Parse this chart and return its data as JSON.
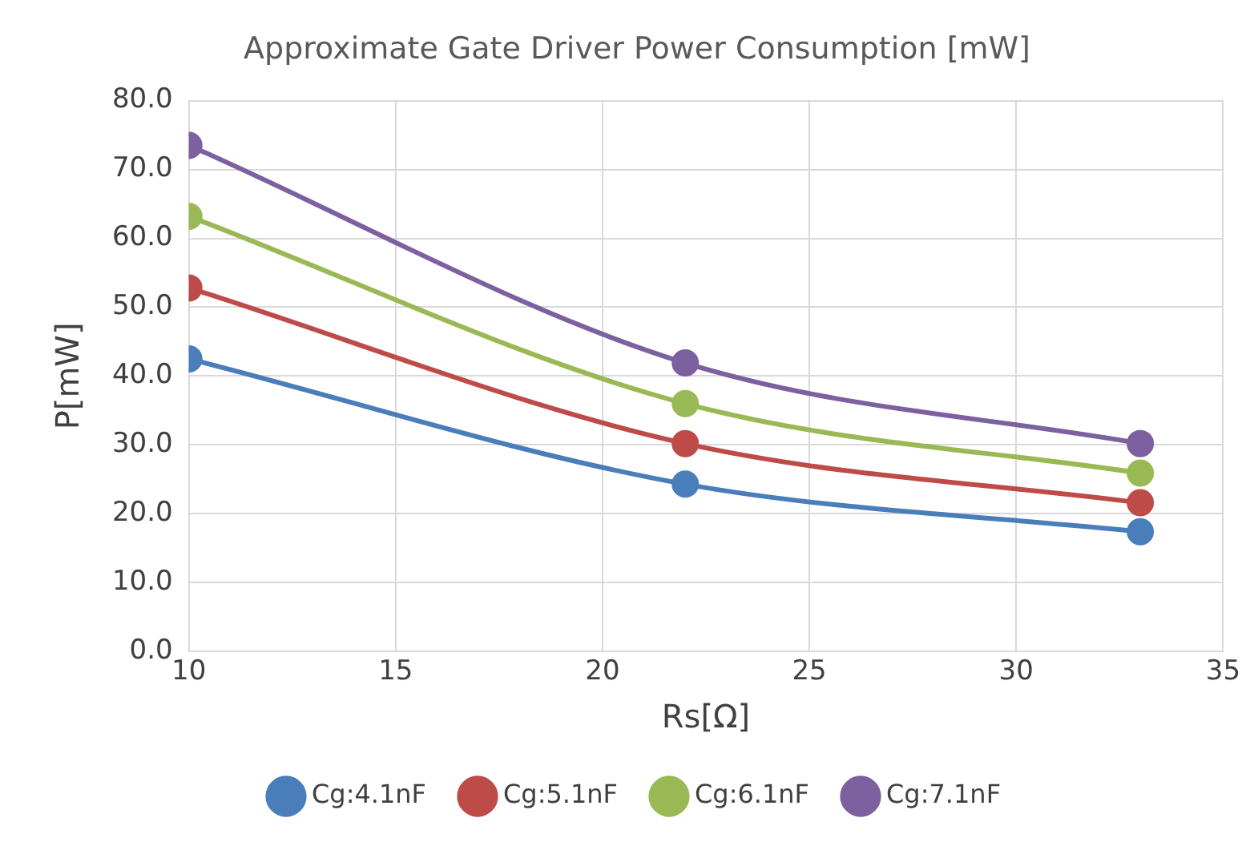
{
  "chart_data": {
    "type": "line",
    "title": "Approximate Gate Driver Power Consumption [mW]",
    "xlabel": "Rs[Ω]",
    "ylabel": "P[mW]",
    "x": [
      10,
      22,
      33
    ],
    "series": [
      {
        "name": "Cg:4.1nF",
        "color": "#4a7ebb",
        "values": [
          42.5,
          24.3,
          17.4
        ]
      },
      {
        "name": "Cg:5.1nF",
        "color": "#be4b48",
        "values": [
          52.8,
          30.2,
          21.6
        ]
      },
      {
        "name": "Cg:6.1nF",
        "color": "#98b954",
        "values": [
          63.2,
          36.0,
          25.9
        ]
      },
      {
        "name": "Cg:7.1nF",
        "color": "#7d60a0",
        "values": [
          73.5,
          41.9,
          30.2
        ]
      }
    ],
    "xlim": [
      10,
      35
    ],
    "xticks": [
      10,
      15,
      20,
      25,
      30,
      35
    ],
    "ylim": [
      0,
      80
    ],
    "yticks": [
      {
        "value": 0,
        "label": "0.0"
      },
      {
        "value": 10,
        "label": "10.0"
      },
      {
        "value": 20,
        "label": "20.0"
      },
      {
        "value": 30,
        "label": "30.0"
      },
      {
        "value": 40,
        "label": "40.0"
      },
      {
        "value": 50,
        "label": "50.0"
      },
      {
        "value": 60,
        "label": "60.0"
      },
      {
        "value": 70,
        "label": "70.0"
      },
      {
        "value": 80,
        "label": "80.0"
      }
    ],
    "grid": true,
    "legend": "bottom",
    "marker": "circle",
    "line_style": "solid"
  }
}
